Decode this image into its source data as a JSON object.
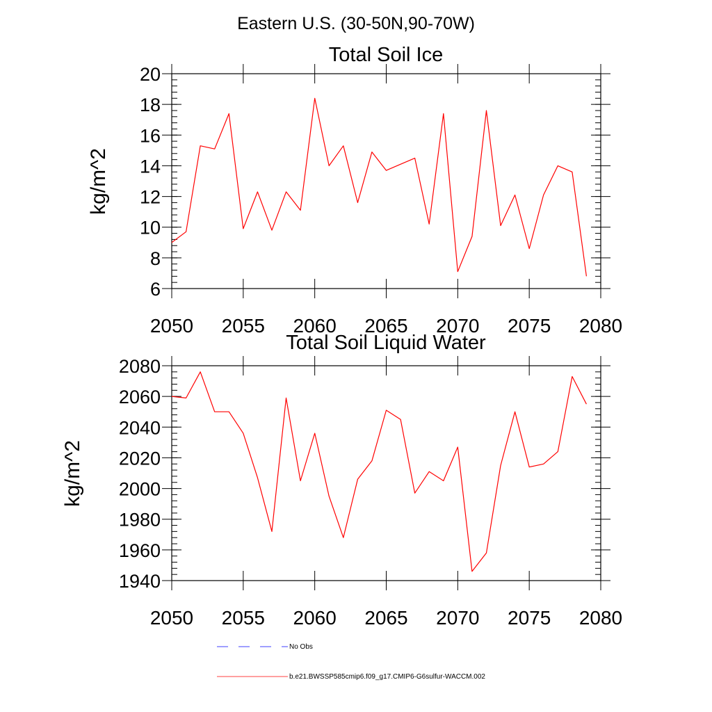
{
  "figure": {
    "title": "Eastern U.S. (30-50N,90-70W)",
    "line_color": "#ff0000",
    "obs_color": "#0000ff"
  },
  "legend": {
    "entries": [
      {
        "label": "No Obs",
        "style": "dashed",
        "color": "#0000ff"
      },
      {
        "label": "b.e21.BWSSP585cmip6.f09_g17.CMIP6-G6sulfur-WACCM.002",
        "style": "solid",
        "color": "#ff0000"
      }
    ]
  },
  "chart_data": [
    {
      "type": "line",
      "title": "Total Soil Ice",
      "xlabel": "",
      "ylabel": "kg/m^2",
      "xlim": [
        2050,
        2080
      ],
      "ylim": [
        6,
        20
      ],
      "xticks": [
        "2050",
        "2055",
        "2060",
        "2065",
        "2070",
        "2075",
        "2080"
      ],
      "yticks": [
        "6",
        "8",
        "10",
        "12",
        "14",
        "16",
        "18",
        "20"
      ],
      "grid": false,
      "x": [
        2050,
        2051,
        2052,
        2053,
        2054,
        2055,
        2056,
        2057,
        2058,
        2059,
        2060,
        2061,
        2062,
        2063,
        2064,
        2065,
        2066,
        2067,
        2068,
        2069,
        2070,
        2071,
        2072,
        2073,
        2074,
        2075,
        2076,
        2077,
        2078,
        2079
      ],
      "series": [
        {
          "values": [
            9.0,
            9.7,
            15.3,
            15.1,
            17.4,
            9.9,
            12.3,
            9.8,
            12.3,
            11.1,
            18.4,
            14.0,
            15.3,
            11.6,
            14.9,
            13.7,
            14.1,
            14.5,
            10.2,
            17.4,
            7.1,
            9.4,
            17.6,
            10.1,
            12.1,
            8.6,
            12.1,
            14.0,
            13.6,
            6.8
          ]
        }
      ]
    },
    {
      "type": "line",
      "title": "Total Soil Liquid Water",
      "xlabel": "",
      "ylabel": "kg/m^2",
      "xlim": [
        2050,
        2080
      ],
      "ylim": [
        1940,
        2080
      ],
      "xticks": [
        "2050",
        "2055",
        "2060",
        "2065",
        "2070",
        "2075",
        "2080"
      ],
      "yticks": [
        "1940",
        "1960",
        "1980",
        "2000",
        "2020",
        "2040",
        "2060",
        "2080"
      ],
      "grid": false,
      "x": [
        2050,
        2051,
        2052,
        2053,
        2054,
        2055,
        2056,
        2057,
        2058,
        2059,
        2060,
        2061,
        2062,
        2063,
        2064,
        2065,
        2066,
        2067,
        2068,
        2069,
        2070,
        2071,
        2072,
        2073,
        2074,
        2075,
        2076,
        2077,
        2078,
        2079
      ],
      "series": [
        {
          "values": [
            2060,
            2059,
            2076,
            2050,
            2050,
            2036,
            2007,
            1972,
            2059,
            2005,
            2036,
            1995,
            1968,
            2006,
            2018,
            2051,
            2045,
            1997,
            2011,
            2005,
            2027,
            1946,
            1958,
            2015,
            2050,
            2014,
            2016,
            2024,
            2073,
            2055
          ]
        }
      ]
    }
  ]
}
